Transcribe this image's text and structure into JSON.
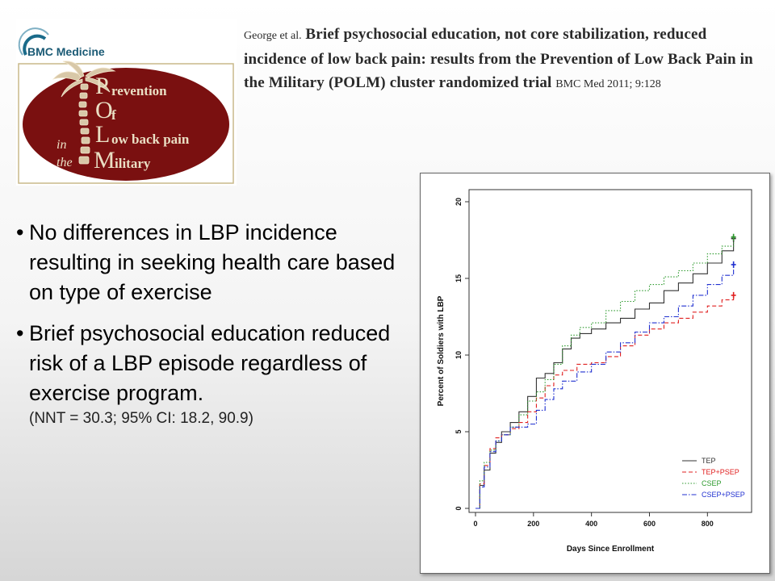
{
  "logo": {
    "journal": "BMC Medicine",
    "title_letters": [
      "P",
      "O",
      "L",
      "M"
    ],
    "title_rest": [
      "revention",
      "f",
      "ow back pain",
      "ilitary"
    ],
    "title_in": "in",
    "title_the": "the",
    "oval_color": "#7a1010",
    "accent": "#1a6b8a"
  },
  "citation": {
    "authors": "George et al.",
    "title": "Brief  psychosocial education, not core stabilization, reduced incidence of low back pain: results from the Prevention of Low Back Pain in the Military (POLM) cluster randomized trial",
    "journal_ref": "BMC Med 2011; 9:128"
  },
  "bullets": [
    {
      "text": "No differences in LBP incidence resulting in seeking health care based on type of exercise"
    },
    {
      "text": "Brief psychosocial education reduced risk of a LBP episode regardless of exercise program.",
      "sub": "(NNT = 30.3; 95% CI: 18.2, 90.9)"
    }
  ],
  "chart_data": {
    "type": "line",
    "xlabel": "Days Since Enrollment",
    "ylabel": "Percent of Soldiers with LBP",
    "xlim": [
      0,
      930
    ],
    "ylim": [
      0,
      20
    ],
    "xticks": [
      0,
      200,
      400,
      600,
      800
    ],
    "yticks": [
      0,
      5,
      10,
      15,
      20
    ],
    "legend_position": "bottom-right",
    "series": [
      {
        "name": "TEP",
        "color": "#333333",
        "dash": "solid",
        "points": [
          [
            0,
            0
          ],
          [
            15,
            1.5
          ],
          [
            30,
            2.5
          ],
          [
            50,
            3.6
          ],
          [
            70,
            4.3
          ],
          [
            90,
            5.0
          ],
          [
            120,
            5.6
          ],
          [
            150,
            6.3
          ],
          [
            180,
            7.3
          ],
          [
            210,
            8.5
          ],
          [
            240,
            8.8
          ],
          [
            270,
            9.5
          ],
          [
            300,
            10.4
          ],
          [
            330,
            11.1
          ],
          [
            360,
            11.4
          ],
          [
            400,
            11.7
          ],
          [
            450,
            12.1
          ],
          [
            500,
            12.4
          ],
          [
            550,
            13.0
          ],
          [
            600,
            13.4
          ],
          [
            650,
            14.2
          ],
          [
            700,
            14.7
          ],
          [
            750,
            15.3
          ],
          [
            800,
            16.0
          ],
          [
            850,
            16.8
          ],
          [
            890,
            17.6
          ]
        ]
      },
      {
        "name": "TEP+PSEP",
        "color": "#e02020",
        "dash": "5,3",
        "points": [
          [
            0,
            0
          ],
          [
            15,
            1.6
          ],
          [
            30,
            2.8
          ],
          [
            50,
            3.9
          ],
          [
            70,
            4.6
          ],
          [
            90,
            4.8
          ],
          [
            120,
            5.2
          ],
          [
            150,
            5.6
          ],
          [
            180,
            6.3
          ],
          [
            210,
            7.2
          ],
          [
            240,
            8.0
          ],
          [
            270,
            8.7
          ],
          [
            300,
            9.0
          ],
          [
            350,
            9.4
          ],
          [
            400,
            9.5
          ],
          [
            450,
            9.9
          ],
          [
            500,
            10.6
          ],
          [
            550,
            11.3
          ],
          [
            600,
            11.7
          ],
          [
            650,
            12.1
          ],
          [
            700,
            12.4
          ],
          [
            750,
            12.8
          ],
          [
            800,
            13.2
          ],
          [
            850,
            13.6
          ],
          [
            890,
            13.9
          ]
        ]
      },
      {
        "name": "CSEP",
        "color": "#2e9a2e",
        "dash": "1.5,2",
        "points": [
          [
            0,
            0
          ],
          [
            15,
            1.8
          ],
          [
            30,
            3.0
          ],
          [
            50,
            3.8
          ],
          [
            70,
            4.4
          ],
          [
            90,
            4.8
          ],
          [
            120,
            5.3
          ],
          [
            150,
            6.1
          ],
          [
            180,
            7.0
          ],
          [
            210,
            7.6
          ],
          [
            240,
            8.4
          ],
          [
            270,
            9.4
          ],
          [
            300,
            10.6
          ],
          [
            330,
            11.3
          ],
          [
            360,
            11.8
          ],
          [
            400,
            12.1
          ],
          [
            450,
            12.9
          ],
          [
            500,
            13.5
          ],
          [
            550,
            14.2
          ],
          [
            600,
            14.6
          ],
          [
            650,
            15.1
          ],
          [
            700,
            15.5
          ],
          [
            750,
            16.0
          ],
          [
            800,
            16.6
          ],
          [
            850,
            17.1
          ],
          [
            890,
            17.7
          ]
        ]
      },
      {
        "name": "CSEP+PSEP",
        "color": "#2030d0",
        "dash": "6,2,1.5,2",
        "points": [
          [
            0,
            0
          ],
          [
            15,
            1.4
          ],
          [
            30,
            2.7
          ],
          [
            50,
            3.7
          ],
          [
            70,
            4.4
          ],
          [
            90,
            4.8
          ],
          [
            120,
            5.3
          ],
          [
            150,
            5.3
          ],
          [
            180,
            5.5
          ],
          [
            210,
            6.4
          ],
          [
            240,
            7.1
          ],
          [
            270,
            7.8
          ],
          [
            300,
            8.3
          ],
          [
            350,
            8.9
          ],
          [
            400,
            9.4
          ],
          [
            450,
            10.2
          ],
          [
            500,
            10.8
          ],
          [
            550,
            11.5
          ],
          [
            600,
            12.1
          ],
          [
            650,
            12.5
          ],
          [
            700,
            13.2
          ],
          [
            750,
            13.9
          ],
          [
            800,
            14.6
          ],
          [
            850,
            15.2
          ],
          [
            890,
            15.9
          ]
        ]
      }
    ]
  }
}
